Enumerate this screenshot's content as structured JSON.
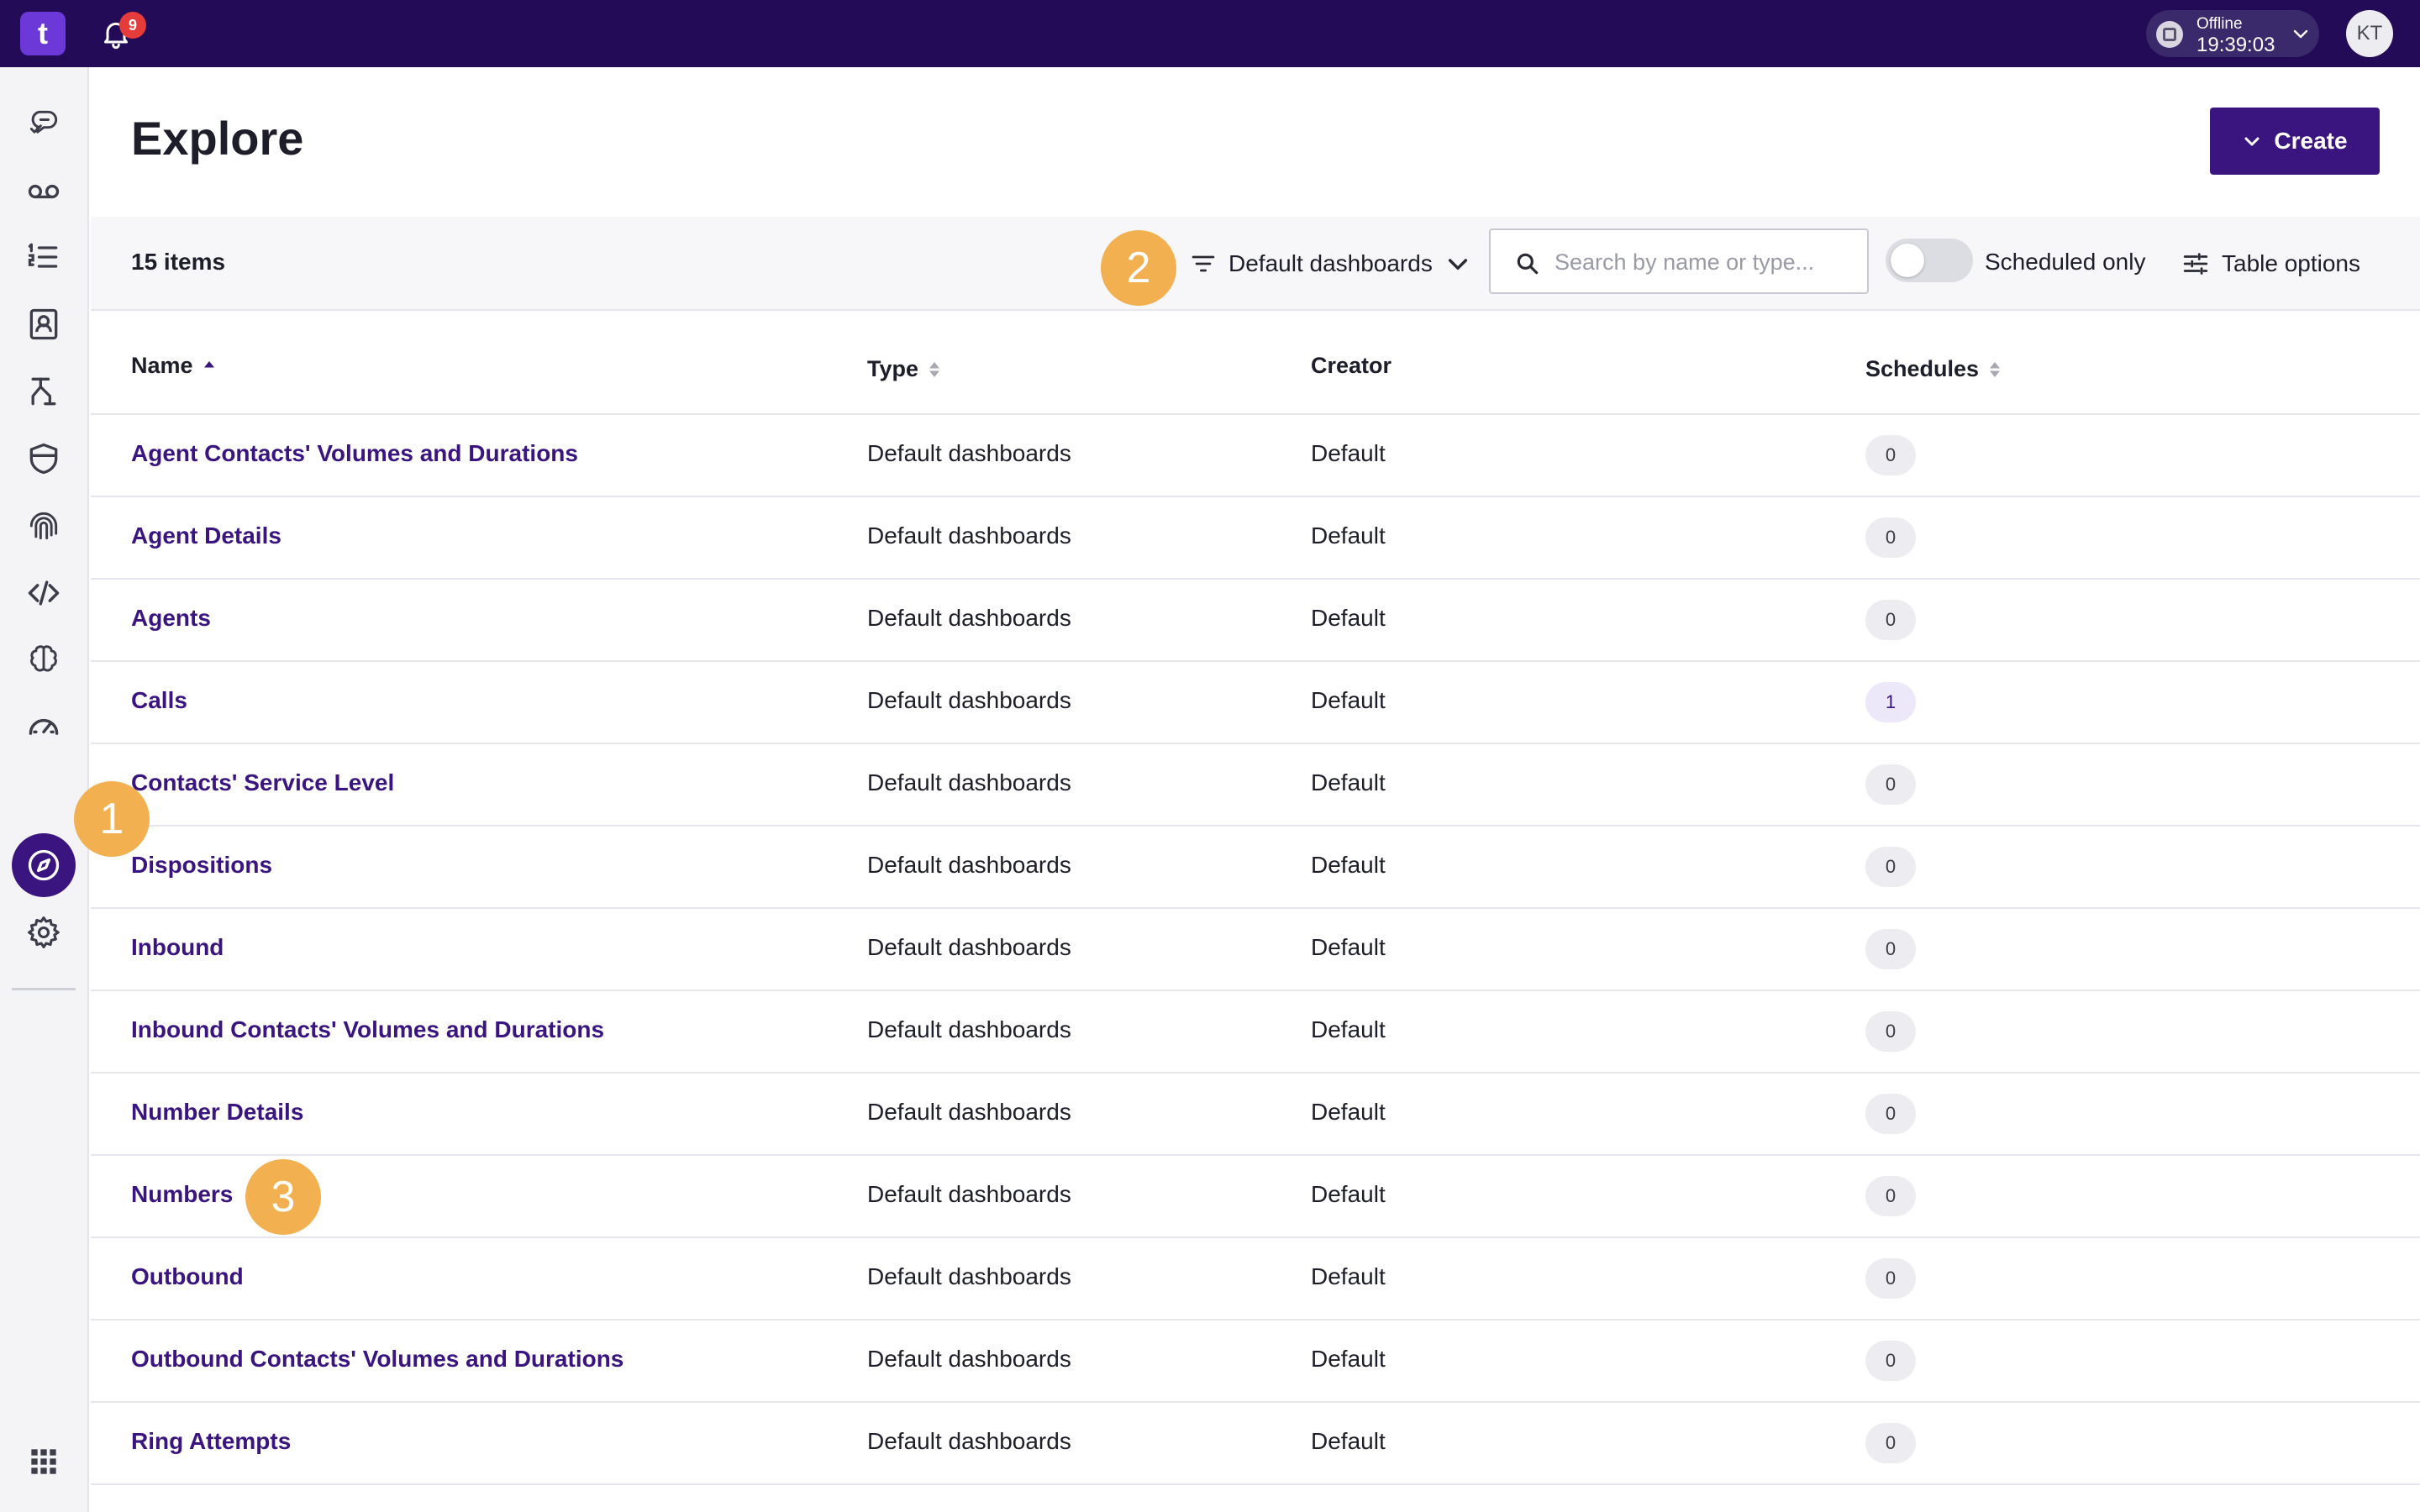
{
  "topbar": {
    "logo_text": "t",
    "notification_count": "9",
    "status_label": "Offline",
    "status_time": "19:39:03",
    "avatar_initials": "KT"
  },
  "sidebar": {
    "items": [
      {
        "icon": "conversations-icon"
      },
      {
        "icon": "voicemail-icon"
      },
      {
        "icon": "list-icon"
      },
      {
        "icon": "contacts-icon"
      },
      {
        "icon": "routing-icon"
      },
      {
        "icon": "shield-icon"
      },
      {
        "icon": "fingerprint-icon"
      },
      {
        "icon": "code-icon"
      },
      {
        "icon": "brain-icon"
      },
      {
        "icon": "dashboard-icon"
      },
      {
        "icon": "compass-icon",
        "active": true
      },
      {
        "icon": "gear-icon"
      }
    ],
    "apps_icon": "apps-grid-icon"
  },
  "page": {
    "title": "Explore",
    "create_label": "Create"
  },
  "toolbar": {
    "item_count": "15 items",
    "filter_label": "Default dashboards",
    "search_placeholder": "Search by name or type...",
    "scheduled_toggle_label": "Scheduled only",
    "scheduled_toggle_on": false,
    "table_options_label": "Table options"
  },
  "table": {
    "headers": {
      "name": "Name",
      "type": "Type",
      "creator": "Creator",
      "schedules": "Schedules"
    },
    "rows": [
      {
        "name": "Agent Contacts' Volumes and Durations",
        "type": "Default dashboards",
        "creator": "Default",
        "schedules": "0"
      },
      {
        "name": "Agent Details",
        "type": "Default dashboards",
        "creator": "Default",
        "schedules": "0"
      },
      {
        "name": "Agents",
        "type": "Default dashboards",
        "creator": "Default",
        "schedules": "0"
      },
      {
        "name": "Calls",
        "type": "Default dashboards",
        "creator": "Default",
        "schedules": "1"
      },
      {
        "name": "Contacts' Service Level",
        "type": "Default dashboards",
        "creator": "Default",
        "schedules": "0"
      },
      {
        "name": "Dispositions",
        "type": "Default dashboards",
        "creator": "Default",
        "schedules": "0"
      },
      {
        "name": "Inbound",
        "type": "Default dashboards",
        "creator": "Default",
        "schedules": "0"
      },
      {
        "name": "Inbound Contacts' Volumes and Durations",
        "type": "Default dashboards",
        "creator": "Default",
        "schedules": "0"
      },
      {
        "name": "Number Details",
        "type": "Default dashboards",
        "creator": "Default",
        "schedules": "0"
      },
      {
        "name": "Numbers",
        "type": "Default dashboards",
        "creator": "Default",
        "schedules": "0"
      },
      {
        "name": "Outbound",
        "type": "Default dashboards",
        "creator": "Default",
        "schedules": "0"
      },
      {
        "name": "Outbound Contacts' Volumes and Durations",
        "type": "Default dashboards",
        "creator": "Default",
        "schedules": "0"
      },
      {
        "name": "Ring Attempts",
        "type": "Default dashboards",
        "creator": "Default",
        "schedules": "0"
      },
      {
        "name": "",
        "type": "",
        "creator": "",
        "schedules": ""
      }
    ]
  },
  "markers": [
    "1",
    "2",
    "3"
  ],
  "colors": {
    "topbar": "#230b57",
    "brand": "#3a157f",
    "logo": "#6d38d8",
    "marker": "#f2b050",
    "notification": "#e53b3b"
  }
}
